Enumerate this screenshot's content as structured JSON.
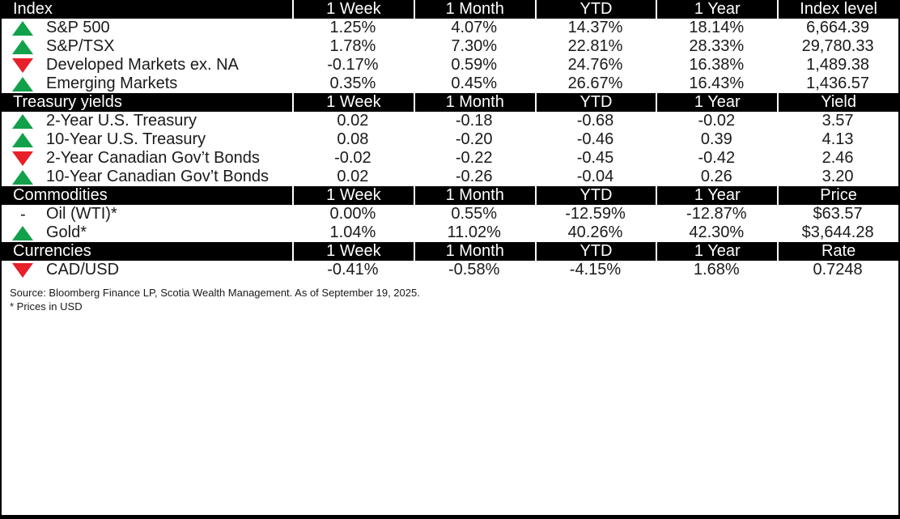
{
  "colors": {
    "header_bg": "#000000",
    "header_text": "#ffffff",
    "up": "#12A14B",
    "down": "#E8202A"
  },
  "chart_data": {
    "type": "table",
    "column_headers": [
      "1 Week",
      "1 Month",
      "YTD",
      "1 Year"
    ],
    "sections": [
      {
        "title": "Index",
        "value_label": "Index level",
        "rows": [
          {
            "direction": "up",
            "label": "S&P 500",
            "values": [
              "1.25%",
              "4.07%",
              "14.37%",
              "18.14%",
              "6,664.39"
            ]
          },
          {
            "direction": "up",
            "label": "S&P/TSX",
            "values": [
              "1.78%",
              "7.30%",
              "22.81%",
              "28.33%",
              "29,780.33"
            ]
          },
          {
            "direction": "down",
            "label": "Developed Markets ex. NA",
            "values": [
              "-0.17%",
              "0.59%",
              "24.76%",
              "16.38%",
              "1,489.38"
            ]
          },
          {
            "direction": "up",
            "label": "Emerging Markets",
            "values": [
              "0.35%",
              "0.45%",
              "26.67%",
              "16.43%",
              "1,436.57"
            ]
          }
        ]
      },
      {
        "title": "Treasury yields",
        "value_label": "Yield",
        "rows": [
          {
            "direction": "up",
            "label": "2-Year U.S. Treasury",
            "values": [
              "0.02",
              "-0.18",
              "-0.68",
              "-0.02",
              "3.57"
            ]
          },
          {
            "direction": "up",
            "label": "10-Year U.S. Treasury",
            "values": [
              "0.08",
              "-0.20",
              "-0.46",
              "0.39",
              "4.13"
            ]
          },
          {
            "direction": "down",
            "label": "2-Year Canadian Gov’t Bonds",
            "values": [
              "-0.02",
              "-0.22",
              "-0.45",
              "-0.42",
              "2.46"
            ]
          },
          {
            "direction": "up",
            "label": "10-Year Canadian Gov’t Bonds",
            "values": [
              "0.02",
              "-0.26",
              "-0.04",
              "0.26",
              "3.20"
            ]
          }
        ]
      },
      {
        "title": "Commodities",
        "value_label": "Price",
        "rows": [
          {
            "direction": "flat",
            "label": "Oil (WTI)*",
            "values": [
              "0.00%",
              "0.55%",
              "-12.59%",
              "-12.87%",
              "$63.57"
            ]
          },
          {
            "direction": "up",
            "label": "Gold*",
            "values": [
              "1.04%",
              "11.02%",
              "40.26%",
              "42.30%",
              "$3,644.28"
            ]
          }
        ]
      },
      {
        "title": "Currencies",
        "value_label": "Rate",
        "rows": [
          {
            "direction": "down",
            "label": "CAD/USD",
            "values": [
              "-0.41%",
              "-0.58%",
              "-4.15%",
              "1.68%",
              "0.7248"
            ]
          }
        ]
      }
    ],
    "footer": {
      "source_line": "Source: Bloomberg Finance LP, Scotia Wealth Management. As of September 19, 2025.",
      "note_line": "* Prices in USD",
      "flat_dash": "-"
    }
  }
}
